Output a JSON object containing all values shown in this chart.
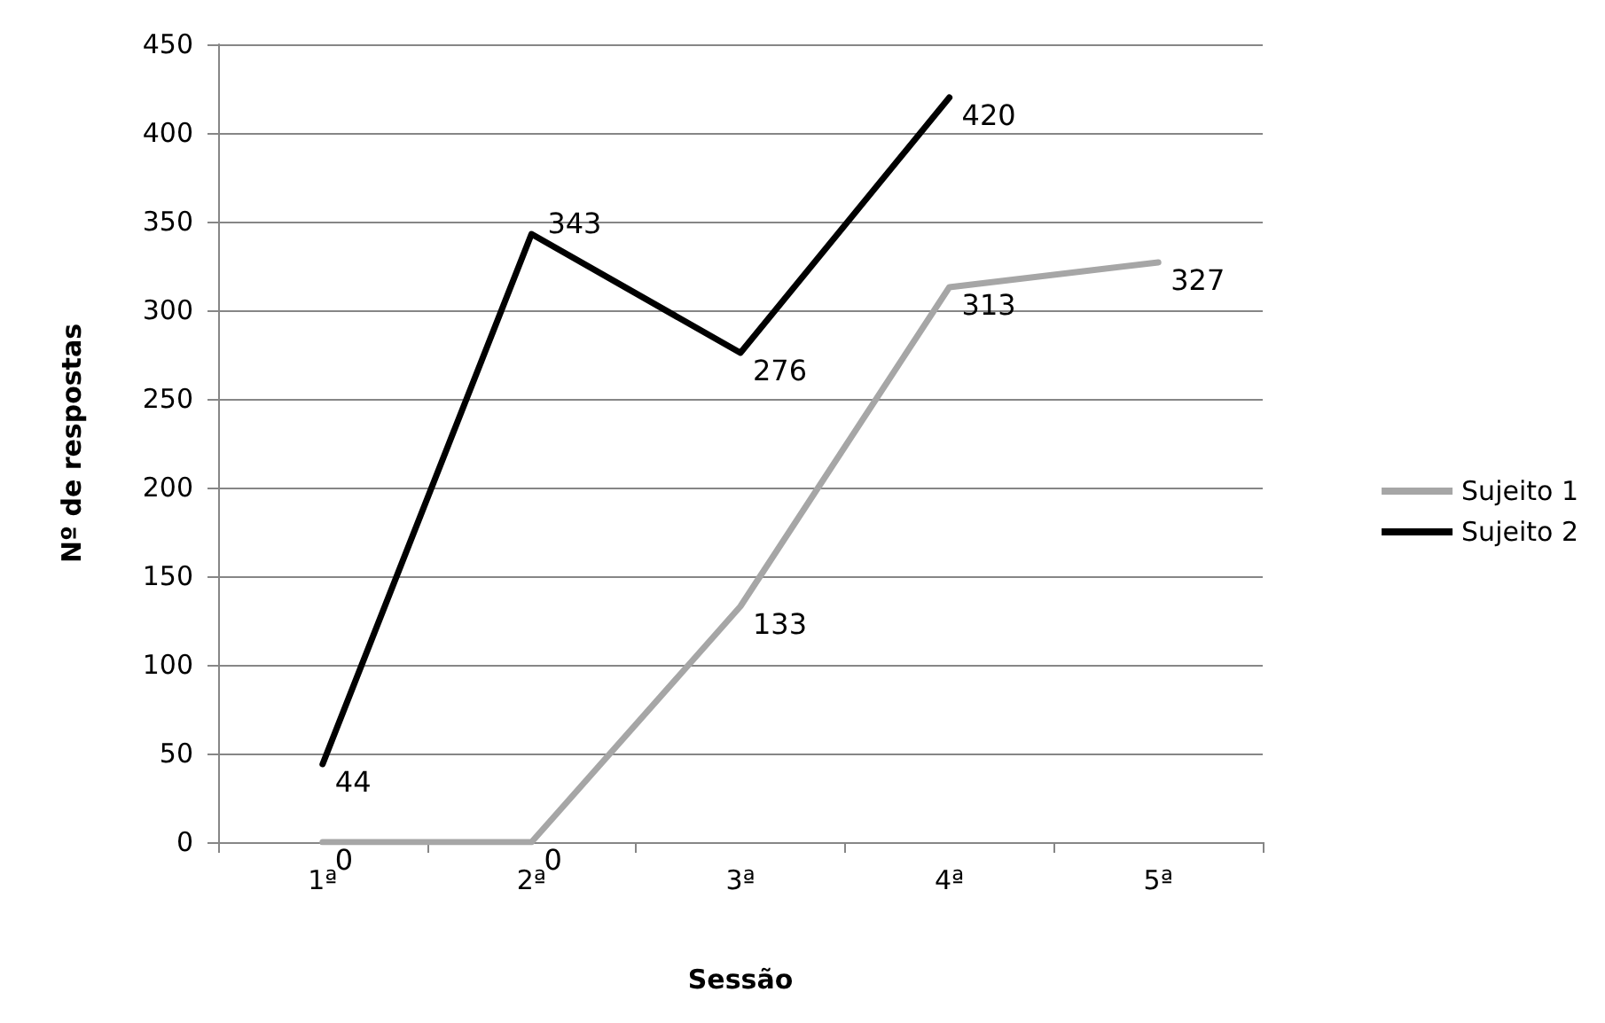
{
  "chart_data": {
    "type": "line",
    "xlabel": "Sessão",
    "ylabel": "Nº de respostas",
    "categories": [
      "1ª",
      "2ª",
      "3ª",
      "4ª",
      "5ª"
    ],
    "series": [
      {
        "name": "Sujeito 1",
        "color": "#a6a6a6",
        "values": [
          0,
          0,
          133,
          313,
          327
        ]
      },
      {
        "name": "Sujeito 2",
        "color": "#000000",
        "values": [
          44,
          343,
          276,
          420,
          null
        ]
      }
    ],
    "ylim": [
      0,
      450
    ],
    "yticks": [
      0,
      50,
      100,
      150,
      200,
      250,
      300,
      350,
      400,
      450
    ],
    "grid": "y",
    "legend": "right",
    "marker": "none",
    "data_labels": true
  }
}
